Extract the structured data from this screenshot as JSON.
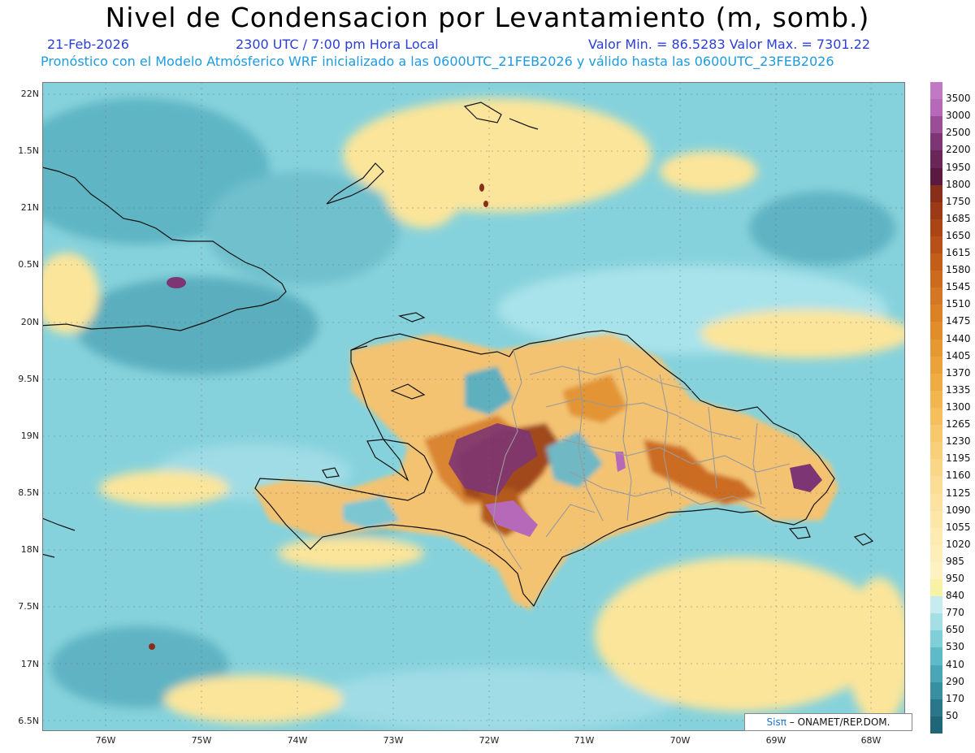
{
  "header": {
    "title": "Nivel de Condensacion por Levantamiento (m, somb.)",
    "date": "21-Feb-2026",
    "time": "2300 UTC / 7:00 pm Hora Local",
    "minmax": "Valor Min. = 86.5283  Valor Max. = 7301.22",
    "model_line": "Pronóstico con el Modelo Atmósferico WRF inicializado a las 0600UTC_21FEB2026 y válido hasta las  0600UTC_23FEB2026"
  },
  "map": {
    "lat_ticks": [
      "22N",
      "1.5N",
      "21N",
      "0.5N",
      "20N",
      "9.5N",
      "19N",
      "8.5N",
      "18N",
      "7.5N",
      "17N",
      "6.5N"
    ],
    "lon_ticks": [
      "76W",
      "75W",
      "74W",
      "73W",
      "72W",
      "71W",
      "70W",
      "69W",
      "68W"
    ],
    "credit_brand": "Sisπ",
    "credit_text": "– ONAMET/REP.DOM."
  },
  "colorbar": {
    "levels": [
      "3500",
      "3000",
      "2500",
      "2200",
      "1950",
      "1800",
      "1750",
      "1685",
      "1650",
      "1615",
      "1580",
      "1545",
      "1510",
      "1475",
      "1440",
      "1405",
      "1370",
      "1335",
      "1300",
      "1265",
      "1230",
      "1195",
      "1160",
      "1125",
      "1090",
      "1055",
      "1020",
      "985",
      "950",
      "840",
      "770",
      "650",
      "530",
      "410",
      "290",
      "170",
      "50"
    ],
    "colors": [
      "#c279c4",
      "#b569b8",
      "#9a4e95",
      "#7e3573",
      "#6a2658",
      "#5a1a3f",
      "#8a2e1c",
      "#9c3a18",
      "#ab4516",
      "#b85118",
      "#c35d1a",
      "#cc6a1e",
      "#d47622",
      "#db8226",
      "#e18d2c",
      "#e69833",
      "#eba23b",
      "#efac45",
      "#f2b651",
      "#f5bf5e",
      "#f7c86c",
      "#f9d07a",
      "#fad787",
      "#fbdd93",
      "#fce29e",
      "#fde7a8",
      "#fdebb1",
      "#feefba",
      "#fef2c2",
      "#f7f2a6",
      "#c7ecef",
      "#a4dfe6",
      "#7fcfd9",
      "#5fbac8",
      "#4aa6b6",
      "#378fa0",
      "#2a778a",
      "#1f6678"
    ]
  }
}
